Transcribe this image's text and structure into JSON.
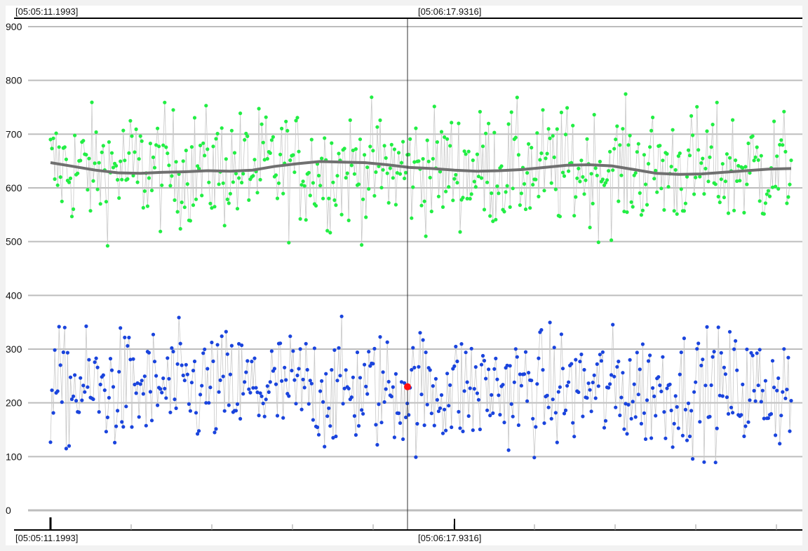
{
  "chart_data": {
    "type": "scatter",
    "title": "",
    "xlabel": "",
    "ylabel": "",
    "ylim": [
      0,
      900
    ],
    "yticks": [
      0,
      100,
      200,
      300,
      400,
      500,
      600,
      700,
      800,
      900
    ],
    "grid": true,
    "x_start_label": "[05:05:11.1993]",
    "cursor_label": "[05:06:17.9316]",
    "x_tick_labels": [
      "[05:05:11.1993]",
      "[05:06:17.9316]"
    ],
    "series": [
      {
        "color": "#22ee44",
        "mean": 635,
        "spread": 90,
        "points": 520
      },
      {
        "color": "#1a44dd",
        "mean": 225,
        "spread": 90,
        "points": 520
      }
    ],
    "trend": {
      "color": "#707070",
      "values": [
        647,
        640,
        633,
        628,
        627,
        629,
        630,
        632,
        631,
        633,
        640,
        645,
        649,
        648,
        647,
        643,
        638,
        636,
        633,
        631,
        632,
        634,
        638,
        642,
        643,
        641,
        634,
        627,
        625,
        626,
        629,
        632,
        635,
        636
      ]
    },
    "highlight": {
      "value": 230,
      "color": "#ff1111"
    },
    "colors": {
      "background": "#ffffff",
      "grid": "#bdbdbd",
      "frame": "#000000",
      "connector": "#c8c8c8",
      "cursor": "#333333"
    }
  }
}
